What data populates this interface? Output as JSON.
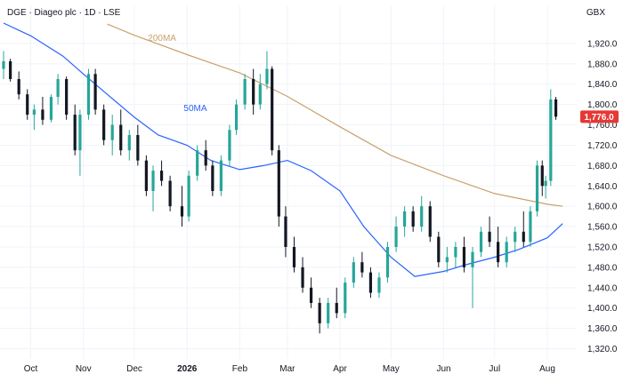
{
  "header": {
    "title": "DGE · Diageo plc · 1D · LSE",
    "currency": "GBX"
  },
  "colors": {
    "up": "#26a69a",
    "down": "#131722",
    "ma50": "#2962ff",
    "ma200": "#c8a26b",
    "price_tag": "#e53935",
    "grid": "#f0f3fa"
  },
  "current_price": "1,776.0",
  "chart_data": {
    "type": "candlestick",
    "title": "DGE · Diageo plc · 1D · LSE",
    "ylabel": "GBX",
    "ylim": [
      1300,
      1960
    ],
    "yticks": [
      1320,
      1360,
      1400,
      1440,
      1480,
      1520,
      1560,
      1600,
      1640,
      1680,
      1720,
      1760,
      1800,
      1840,
      1880,
      1920
    ],
    "ytick_labels": [
      "1,320.0",
      "1,360.0",
      "1,400.0",
      "1,440.0",
      "1,480.0",
      "1,520.0",
      "1,560.0",
      "1,600.0",
      "1,640.0",
      "1,680.0",
      "1,720.0",
      "1,760.0",
      "1,800.0",
      "1,840.0",
      "1,880.0",
      "1,920.0"
    ],
    "x_range": [
      "2025-09-15",
      "2026-08-12"
    ],
    "xticks": [
      {
        "date": "2025-10-01",
        "label": "Oct"
      },
      {
        "date": "2025-11-01",
        "label": "Nov"
      },
      {
        "date": "2025-12-01",
        "label": "Dec"
      },
      {
        "date": "2026-01-01",
        "label": "2026"
      },
      {
        "date": "2026-02-01",
        "label": "Feb"
      },
      {
        "date": "2026-03-01",
        "label": "Mar"
      },
      {
        "date": "2026-04-01",
        "label": "Apr"
      },
      {
        "date": "2026-05-01",
        "label": "May"
      },
      {
        "date": "2026-06-01",
        "label": "Jun"
      },
      {
        "date": "2026-07-01",
        "label": "Jul"
      },
      {
        "date": "2026-08-01",
        "label": "Aug"
      }
    ],
    "grid": true,
    "legend": "none",
    "last_price": 1776.0,
    "ma_series": [
      {
        "name": "50MA",
        "values": [
          [
            "2025-09-15",
            1960
          ],
          [
            "2025-10-01",
            1935
          ],
          [
            "2025-10-20",
            1895
          ],
          [
            "2025-11-01",
            1860
          ],
          [
            "2025-11-15",
            1820
          ],
          [
            "2025-12-01",
            1775
          ],
          [
            "2025-12-15",
            1740
          ],
          [
            "2026-01-01",
            1720
          ],
          [
            "2026-01-15",
            1690
          ],
          [
            "2026-02-01",
            1672
          ],
          [
            "2026-02-15",
            1680
          ],
          [
            "2026-03-01",
            1690
          ],
          [
            "2026-03-15",
            1670
          ],
          [
            "2026-04-01",
            1630
          ],
          [
            "2026-04-15",
            1560
          ],
          [
            "2026-05-01",
            1500
          ],
          [
            "2026-05-15",
            1462
          ],
          [
            "2026-06-01",
            1472
          ],
          [
            "2026-06-15",
            1486
          ],
          [
            "2026-07-01",
            1500
          ],
          [
            "2026-07-15",
            1515
          ],
          [
            "2026-08-01",
            1538
          ],
          [
            "2026-08-10",
            1566
          ]
        ]
      },
      {
        "name": "200MA",
        "values": [
          [
            "2025-11-15",
            1958
          ],
          [
            "2025-12-01",
            1936
          ],
          [
            "2026-01-01",
            1898
          ],
          [
            "2026-02-01",
            1862
          ],
          [
            "2026-03-01",
            1816
          ],
          [
            "2026-04-01",
            1756
          ],
          [
            "2026-05-01",
            1700
          ],
          [
            "2026-06-01",
            1660
          ],
          [
            "2026-07-01",
            1625
          ],
          [
            "2026-08-01",
            1604
          ],
          [
            "2026-08-10",
            1600
          ]
        ]
      }
    ],
    "series": [
      {
        "name": "OHLC",
        "values": [
          [
            "2025-09-15",
            1870,
            1905,
            1850,
            1885
          ],
          [
            "2025-09-19",
            1885,
            1890,
            1845,
            1850
          ],
          [
            "2025-09-24",
            1850,
            1865,
            1810,
            1820
          ],
          [
            "2025-09-29",
            1820,
            1830,
            1770,
            1780
          ],
          [
            "2025-10-03",
            1780,
            1800,
            1750,
            1790
          ],
          [
            "2025-10-08",
            1790,
            1815,
            1760,
            1770
          ],
          [
            "2025-10-13",
            1770,
            1820,
            1765,
            1815
          ],
          [
            "2025-10-17",
            1815,
            1860,
            1800,
            1850
          ],
          [
            "2025-10-22",
            1850,
            1855,
            1770,
            1780
          ],
          [
            "2025-10-27",
            1780,
            1800,
            1700,
            1710
          ],
          [
            "2025-10-30",
            1710,
            1790,
            1660,
            1780
          ],
          [
            "2025-11-04",
            1780,
            1870,
            1770,
            1860
          ],
          [
            "2025-11-08",
            1860,
            1870,
            1780,
            1790
          ],
          [
            "2025-11-13",
            1790,
            1800,
            1720,
            1730
          ],
          [
            "2025-11-18",
            1730,
            1780,
            1700,
            1760
          ],
          [
            "2025-11-23",
            1760,
            1790,
            1700,
            1710
          ],
          [
            "2025-11-28",
            1710,
            1750,
            1690,
            1740
          ],
          [
            "2025-12-03",
            1740,
            1760,
            1680,
            1690
          ],
          [
            "2025-12-08",
            1690,
            1700,
            1620,
            1630
          ],
          [
            "2025-12-12",
            1630,
            1680,
            1590,
            1670
          ],
          [
            "2025-12-17",
            1670,
            1690,
            1640,
            1650
          ],
          [
            "2025-12-22",
            1650,
            1660,
            1590,
            1600
          ],
          [
            "2025-12-29",
            1600,
            1640,
            1560,
            1580
          ],
          [
            "2026-01-02",
            1580,
            1670,
            1570,
            1660
          ],
          [
            "2026-01-07",
            1660,
            1720,
            1650,
            1710
          ],
          [
            "2026-01-12",
            1710,
            1730,
            1670,
            1680
          ],
          [
            "2026-01-16",
            1680,
            1690,
            1620,
            1630
          ],
          [
            "2026-01-21",
            1630,
            1700,
            1620,
            1690
          ],
          [
            "2026-01-26",
            1690,
            1760,
            1680,
            1750
          ],
          [
            "2026-01-30",
            1750,
            1810,
            1740,
            1800
          ],
          [
            "2026-02-04",
            1800,
            1860,
            1790,
            1850
          ],
          [
            "2026-02-09",
            1850,
            1870,
            1780,
            1800
          ],
          [
            "2026-02-13",
            1800,
            1860,
            1790,
            1840
          ],
          [
            "2026-02-17",
            1840,
            1905,
            1830,
            1870
          ],
          [
            "2026-02-20",
            1870,
            1875,
            1700,
            1710
          ],
          [
            "2026-02-24",
            1710,
            1720,
            1560,
            1580
          ],
          [
            "2026-02-28",
            1580,
            1600,
            1500,
            1520
          ],
          [
            "2026-03-05",
            1520,
            1540,
            1470,
            1480
          ],
          [
            "2026-03-10",
            1480,
            1500,
            1430,
            1440
          ],
          [
            "2026-03-15",
            1440,
            1460,
            1400,
            1410
          ],
          [
            "2026-03-20",
            1410,
            1420,
            1350,
            1370
          ],
          [
            "2026-03-25",
            1370,
            1420,
            1360,
            1410
          ],
          [
            "2026-03-30",
            1410,
            1440,
            1380,
            1390
          ],
          [
            "2026-04-04",
            1390,
            1460,
            1380,
            1450
          ],
          [
            "2026-04-09",
            1450,
            1500,
            1440,
            1490
          ],
          [
            "2026-04-14",
            1490,
            1510,
            1460,
            1470
          ],
          [
            "2026-04-19",
            1470,
            1480,
            1420,
            1430
          ],
          [
            "2026-04-24",
            1430,
            1470,
            1420,
            1460
          ],
          [
            "2026-04-29",
            1460,
            1530,
            1450,
            1520
          ],
          [
            "2026-05-04",
            1520,
            1580,
            1510,
            1560
          ],
          [
            "2026-05-09",
            1560,
            1600,
            1540,
            1590
          ],
          [
            "2026-05-14",
            1590,
            1600,
            1550,
            1560
          ],
          [
            "2026-05-19",
            1560,
            1620,
            1550,
            1600
          ],
          [
            "2026-05-24",
            1600,
            1610,
            1530,
            1540
          ],
          [
            "2026-05-29",
            1540,
            1550,
            1480,
            1490
          ],
          [
            "2026-06-03",
            1490,
            1520,
            1470,
            1500
          ],
          [
            "2026-06-08",
            1500,
            1530,
            1480,
            1520
          ],
          [
            "2026-06-13",
            1520,
            1540,
            1470,
            1480
          ],
          [
            "2026-06-18",
            1480,
            1520,
            1400,
            1510
          ],
          [
            "2026-06-23",
            1510,
            1560,
            1500,
            1550
          ],
          [
            "2026-06-28",
            1550,
            1580,
            1520,
            1530
          ],
          [
            "2026-07-03",
            1530,
            1560,
            1480,
            1490
          ],
          [
            "2026-07-08",
            1490,
            1540,
            1480,
            1530
          ],
          [
            "2026-07-13",
            1530,
            1560,
            1510,
            1550
          ],
          [
            "2026-07-18",
            1550,
            1590,
            1520,
            1530
          ],
          [
            "2026-07-22",
            1530,
            1600,
            1520,
            1590
          ],
          [
            "2026-07-26",
            1590,
            1690,
            1580,
            1680
          ],
          [
            "2026-07-29",
            1680,
            1690,
            1620,
            1640
          ],
          [
            "2026-07-31",
            1640,
            1660,
            1615,
            1650
          ],
          [
            "2026-08-03",
            1650,
            1830,
            1640,
            1810
          ],
          [
            "2026-08-06",
            1810,
            1815,
            1770,
            1776
          ]
        ]
      }
    ],
    "annotations": [
      "200MA",
      "50MA"
    ]
  }
}
